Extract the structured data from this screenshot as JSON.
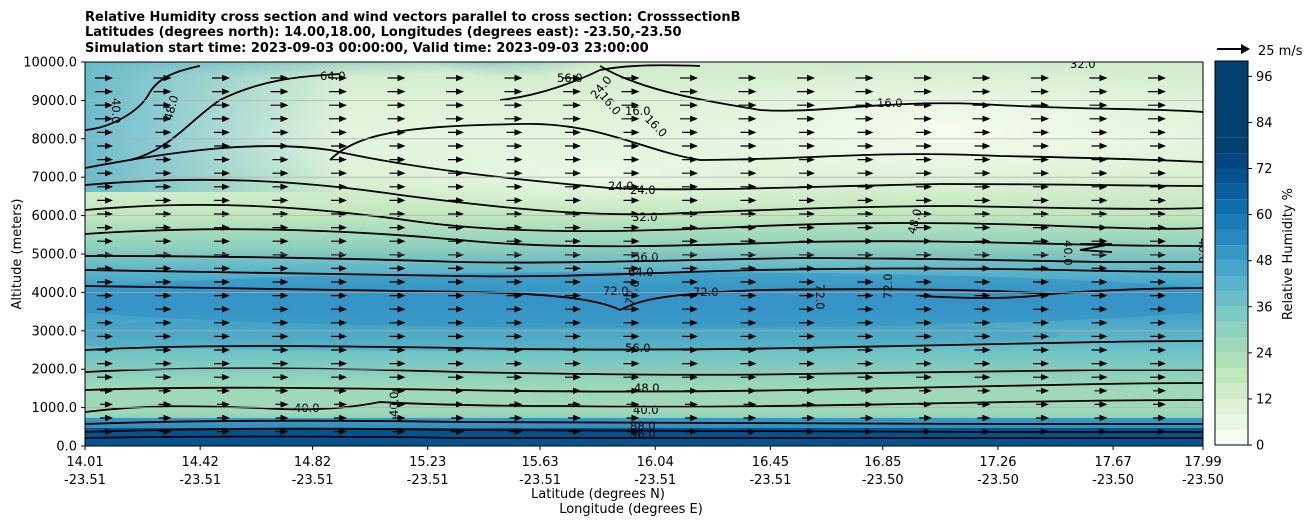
{
  "chart_data": {
    "type": "heatmap",
    "title": [
      "Relative Humidity cross section and wind vectors parallel to cross section: CrosssectionB",
      "Latitudes (degrees north): 14.00,18.00, Longitudes (degrees east): -23.50,-23.50",
      "Simulation start time: 2023-09-03 00:00:00, Valid time: 2023-09-03 23:00:00"
    ],
    "ylabel": "Altitude (meters)",
    "xlabel_lat": "Latitude (degrees N)",
    "xlabel_lon": "Longitude (degrees E)",
    "ylim": [
      0,
      10000
    ],
    "y_ticks": [
      "0.0",
      "1000.0",
      "2000.0",
      "3000.0",
      "4000.0",
      "5000.0",
      "6000.0",
      "7000.0",
      "8000.0",
      "9000.0",
      "10000.0"
    ],
    "x_ticks": [
      {
        "lat": "14.01",
        "lon": "-23.51"
      },
      {
        "lat": "14.42",
        "lon": "-23.51"
      },
      {
        "lat": "14.82",
        "lon": "-23.51"
      },
      {
        "lat": "15.23",
        "lon": "-23.51"
      },
      {
        "lat": "15.63",
        "lon": "-23.51"
      },
      {
        "lat": "16.04",
        "lon": "-23.51"
      },
      {
        "lat": "16.45",
        "lon": "-23.51"
      },
      {
        "lat": "16.85",
        "lon": "-23.50"
      },
      {
        "lat": "17.26",
        "lon": "-23.50"
      },
      {
        "lat": "17.67",
        "lon": "-23.50"
      },
      {
        "lat": "17.99",
        "lon": "-23.50"
      }
    ],
    "xlim": [
      14.01,
      17.99
    ],
    "colorbar": {
      "label": "Relative Humidity %",
      "ticks": [
        "0",
        "12",
        "24",
        "36",
        "48",
        "60",
        "72",
        "84",
        "96"
      ],
      "range": [
        0,
        100
      ],
      "step": 4,
      "colors": [
        "#f7fcf0",
        "#e9f7e3",
        "#dcf2d6",
        "#cfecc9",
        "#c1e7bd",
        "#b0e0b7",
        "#9fd9b9",
        "#8ed1bf",
        "#7ccac5",
        "#69bec8",
        "#57b2cb",
        "#46a5cb",
        "#3698c4",
        "#278abe",
        "#1a7cb7",
        "#0d6eae",
        "#09609f",
        "#06528f",
        "#044480",
        "#034070"
      ]
    },
    "quiver_key": {
      "label": "25 m/s"
    },
    "contour_levels_labeled": [
      "16.0",
      "24.0",
      "32.0",
      "40.0",
      "48.0",
      "56.0",
      "64.0",
      "72.0",
      "88.0",
      "96.0"
    ],
    "rh_profile_by_altitude": [
      {
        "alt": 200,
        "rh": 96
      },
      {
        "alt": 450,
        "rh": 88
      },
      {
        "alt": 800,
        "rh": 44
      },
      {
        "alt": 1500,
        "rh": 44
      },
      {
        "alt": 2500,
        "rh": 58
      },
      {
        "alt": 3500,
        "rh": 68
      },
      {
        "alt": 4200,
        "rh": 62
      },
      {
        "alt": 5200,
        "rh": 50
      },
      {
        "alt": 6500,
        "rh": 28
      },
      {
        "alt": 8000,
        "rh": 18
      },
      {
        "alt": 9500,
        "rh": 24
      }
    ],
    "wind_direction": "parallel, toward increasing latitude"
  }
}
